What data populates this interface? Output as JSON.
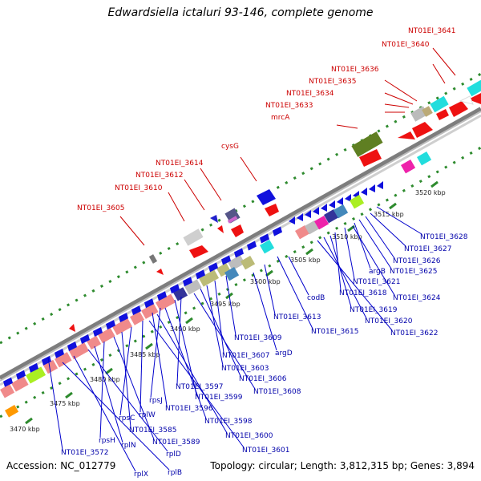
{
  "title": "Edwardsiella ictaluri 93-146, complete genome",
  "footer": {
    "accession": "Accession: NC_012779",
    "summary": "Topology: circular; Length: 3,812,315 bp; Genes: 3,894"
  },
  "scale_labels": [
    "3470 kbp",
    "3475 kbp",
    "3480 kbp",
    "3485 kbp",
    "3490 kbp",
    "3495 kbp",
    "3500 kbp",
    "3505 kbp",
    "3510 kbp",
    "3515 kbp",
    "3520 kbp"
  ],
  "outer_labels": [
    "NT01EI_3641",
    "NT01EI_3640",
    "NT01EI_3636",
    "NT01EI_3635",
    "NT01EI_3634",
    "NT01EI_3633",
    "mrcA",
    "cysG",
    "NT01EI_3614",
    "NT01EI_3612",
    "NT01EI_3610",
    "NT01EI_3605"
  ],
  "inner_labels": [
    "NT01EI_3628",
    "NT01EI_3627",
    "NT01EI_3626",
    "NT01EI_3625",
    "argB",
    "NT01EI_3621",
    "NT01EI_3618",
    "NT01EI_3624",
    "NT01EI_3619",
    "NT01EI_3620",
    "NT01EI_3622",
    "codB",
    "NT01EI_3613",
    "NT01EI_3615",
    "argD",
    "NT01EI_3609",
    "NT01EI_3607",
    "NT01EI_3603",
    "NT01EI_3606",
    "NT01EI_3608",
    "NT01EI_3597",
    "NT01EI_3599",
    "rpsJ",
    "NT01EI_3596",
    "NT01EI_3598",
    "rplW",
    "NT01EI_3600",
    "rpsC",
    "NT01EI_3601",
    "NT01EI_3585",
    "NT01EI_3589",
    "rpsH",
    "rplN",
    "rplD",
    "NT01EI_3572",
    "rplX",
    "rplB"
  ],
  "colors": {
    "outer_label": "#cc0000",
    "inner_label": "#0000aa",
    "leader_red": "#cc0000",
    "leader_blue": "#0000cc",
    "tick_green": "#2e8b2e",
    "backbone": "#8c8c8c",
    "gene_red": "#ee1111",
    "gene_blue": "#1111dd",
    "gene_salmon": "#f08a8a",
    "gene_cyan": "#22dddd",
    "gene_olive": "#5f7f22",
    "gene_gray": "#bdbdbd",
    "gene_lime": "#aaee22",
    "gene_navy": "#333399",
    "gene_khaki": "#bbbb77",
    "gene_teal": "#4488bb",
    "gene_magenta": "#ee22aa",
    "gene_orange": "#ff9900"
  }
}
